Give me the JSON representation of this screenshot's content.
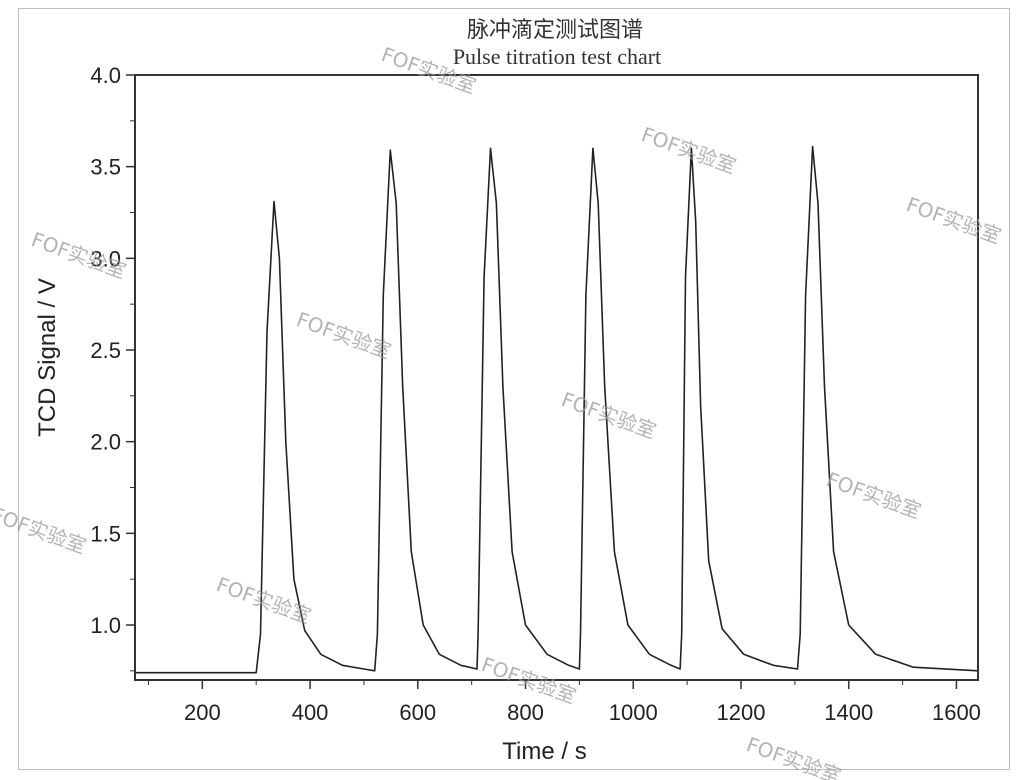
{
  "chart_data": {
    "type": "line",
    "title": "脉冲滴定测试图谱",
    "subtitle": "Pulse titration test chart",
    "xlabel": "Time / s",
    "ylabel": "TCD Signal / V",
    "xlim": [
      75,
      1640
    ],
    "ylim": [
      0.7,
      4.0
    ],
    "xticks": [
      200,
      400,
      600,
      800,
      1000,
      1200,
      1400,
      1600
    ],
    "yticks": [
      1.0,
      1.5,
      2.0,
      2.5,
      3.0,
      3.5,
      4.0
    ],
    "grid": false,
    "series": [
      {
        "x": [
          75,
          300,
          308,
          320,
          333,
          343,
          355,
          370,
          390,
          420,
          460,
          500,
          520,
          525,
          536,
          549,
          560,
          572,
          588,
          610,
          640,
          680,
          710,
          712,
          723,
          735,
          746,
          758,
          775,
          800,
          840,
          880,
          900,
          902,
          912,
          925,
          935,
          947,
          965,
          990,
          1030,
          1070,
          1087,
          1090,
          1097,
          1108,
          1116,
          1125,
          1140,
          1165,
          1205,
          1260,
          1305,
          1310,
          1320,
          1333,
          1343,
          1355,
          1372,
          1400,
          1450,
          1520,
          1640
        ],
        "y": [
          0.74,
          0.74,
          0.95,
          2.6,
          3.31,
          3.0,
          2.0,
          1.25,
          0.97,
          0.84,
          0.78,
          0.76,
          0.75,
          0.95,
          2.8,
          3.59,
          3.3,
          2.3,
          1.4,
          1.0,
          0.84,
          0.78,
          0.76,
          0.95,
          2.9,
          3.6,
          3.3,
          2.3,
          1.4,
          1.0,
          0.84,
          0.78,
          0.76,
          0.95,
          2.8,
          3.6,
          3.3,
          2.3,
          1.4,
          1.0,
          0.84,
          0.78,
          0.76,
          0.95,
          2.9,
          3.6,
          3.2,
          2.2,
          1.35,
          0.98,
          0.84,
          0.78,
          0.76,
          0.95,
          2.8,
          3.61,
          3.3,
          2.3,
          1.4,
          1.0,
          0.84,
          0.77,
          0.75
        ]
      }
    ]
  },
  "watermark": {
    "text": "FOF实验室"
  }
}
